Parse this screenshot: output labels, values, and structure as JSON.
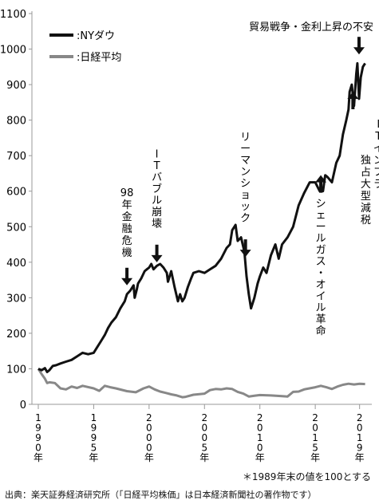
{
  "chart_data": {
    "type": "line",
    "ylim": [
      0,
      1100
    ],
    "yticks": [
      0,
      100,
      200,
      300,
      400,
      500,
      600,
      700,
      800,
      900,
      1000,
      1100
    ],
    "xlim": [
      1990,
      2019.6
    ],
    "xticks": [
      {
        "year": 1990,
        "label": "1990年"
      },
      {
        "year": 1995,
        "label": "1995年"
      },
      {
        "year": 2000,
        "label": "2000年"
      },
      {
        "year": 2005,
        "label": "2005年"
      },
      {
        "year": 2010,
        "label": "2010年"
      },
      {
        "year": 2015,
        "label": "2015年"
      },
      {
        "year": 2019,
        "label": "2019年"
      }
    ],
    "legend_position": "top-left",
    "series": [
      {
        "name": ":NYダウ",
        "color": "#111111",
        "x": [
          1990.0,
          1990.3,
          1990.6,
          1990.8,
          1991.0,
          1991.3,
          1991.6,
          1992.0,
          1992.5,
          1993.0,
          1993.5,
          1994.0,
          1994.5,
          1995.0,
          1995.3,
          1995.6,
          1996.0,
          1996.3,
          1996.6,
          1997.0,
          1997.4,
          1997.8,
          1998.0,
          1998.3,
          1998.6,
          1998.7,
          1998.9,
          1999.0,
          1999.3,
          1999.6,
          1999.8,
          2000.0,
          2000.2,
          2000.4,
          2000.7,
          2001.0,
          2001.3,
          2001.6,
          2001.7,
          2002.0,
          2002.3,
          2002.6,
          2002.8,
          2003.0,
          2003.2,
          2003.5,
          2003.8,
          2004.0,
          2004.5,
          2005.0,
          2005.5,
          2006.0,
          2006.5,
          2007.0,
          2007.3,
          2007.5,
          2007.8,
          2008.0,
          2008.3,
          2008.6,
          2008.8,
          2009.0,
          2009.2,
          2009.5,
          2009.8,
          2010.0,
          2010.3,
          2010.6,
          2011.0,
          2011.4,
          2011.7,
          2012.0,
          2012.5,
          2013.0,
          2013.5,
          2014.0,
          2014.5,
          2015.0,
          2015.4,
          2015.7,
          2015.9,
          2016.1,
          2016.5,
          2016.9,
          2017.2,
          2017.5,
          2017.8,
          2018.0,
          2018.1,
          2018.3,
          2018.5,
          2018.7,
          2018.8,
          2018.95,
          2019.1,
          2019.3,
          2019.5
        ],
        "values": [
          100,
          96,
          102,
          91,
          96,
          108,
          110,
          115,
          120,
          125,
          135,
          145,
          141,
          145,
          160,
          175,
          195,
          215,
          230,
          245,
          270,
          290,
          310,
          320,
          335,
          300,
          325,
          340,
          355,
          375,
          380,
          385,
          395,
          380,
          390,
          395,
          385,
          370,
          345,
          375,
          330,
          290,
          310,
          290,
          300,
          330,
          355,
          370,
          375,
          370,
          380,
          390,
          410,
          440,
          450,
          490,
          505,
          460,
          470,
          430,
          360,
          310,
          270,
          300,
          340,
          360,
          385,
          370,
          420,
          450,
          410,
          450,
          470,
          500,
          560,
          595,
          625,
          625,
          600,
          600,
          645,
          640,
          625,
          680,
          700,
          760,
          800,
          830,
          880,
          900,
          840,
          930,
          960,
          860,
          920,
          950,
          960
        ]
      },
      {
        "name": ":日経平均",
        "color": "#888888",
        "x": [
          1990.0,
          1990.3,
          1990.6,
          1990.8,
          1991.0,
          1991.5,
          1992.0,
          1992.5,
          1993.0,
          1993.5,
          1994.0,
          1995.0,
          1995.5,
          1996.0,
          1996.5,
          1997.0,
          1998.0,
          1998.8,
          1999.5,
          2000.0,
          2000.5,
          2001.0,
          2001.5,
          2002.0,
          2002.5,
          2003.0,
          2003.3,
          2004.0,
          2005.0,
          2005.5,
          2006.0,
          2006.5,
          2007.0,
          2007.5,
          2008.0,
          2008.5,
          2009.0,
          2009.5,
          2010.0,
          2011.0,
          2012.0,
          2012.5,
          2013.0,
          2013.5,
          2014.0,
          2015.0,
          2015.5,
          2016.0,
          2016.5,
          2017.0,
          2017.5,
          2018.0,
          2018.5,
          2019.0,
          2019.5
        ],
        "values": [
          100,
          85,
          72,
          60,
          62,
          60,
          45,
          42,
          50,
          46,
          52,
          45,
          38,
          52,
          48,
          45,
          37,
          34,
          45,
          50,
          42,
          36,
          32,
          28,
          25,
          20,
          21,
          27,
          30,
          40,
          43,
          42,
          45,
          43,
          35,
          30,
          22,
          24,
          26,
          25,
          23,
          22,
          35,
          36,
          42,
          48,
          52,
          48,
          43,
          50,
          55,
          58,
          56,
          58,
          57
        ]
      }
    ],
    "annotations": [
      {
        "id": "crisis98",
        "text": "98年金融危機",
        "x": 1998.0,
        "arrow_y": 335,
        "dir": "down"
      },
      {
        "id": "itbubble",
        "text": "ITバブル崩壊",
        "x": 2000.7,
        "arrow_y": 400,
        "dir": "down"
      },
      {
        "id": "lehman",
        "text": "リーマンショック",
        "x": 2008.7,
        "arrow_y": 415,
        "dir": "down"
      },
      {
        "id": "shale",
        "text": "シェールガス・オイル革命",
        "x": 2015.5,
        "arrow_y": 645,
        "dir": "up"
      },
      {
        "id": "ittax",
        "text": "ITインフラ独占大型減税",
        "x": 2018.4,
        "arrow_y": 880,
        "dir": "up"
      },
      {
        "id": "tradewar",
        "text": "貿易戦争・金利上昇の不安",
        "x": 2018.95,
        "arrow_y": 985,
        "dir": "down"
      }
    ],
    "footnote": "＊1989年末の値を100とする",
    "source": "出典：楽天証券経済研究所（「日経平均株価」は日本経済新聞社の著作物です）"
  }
}
